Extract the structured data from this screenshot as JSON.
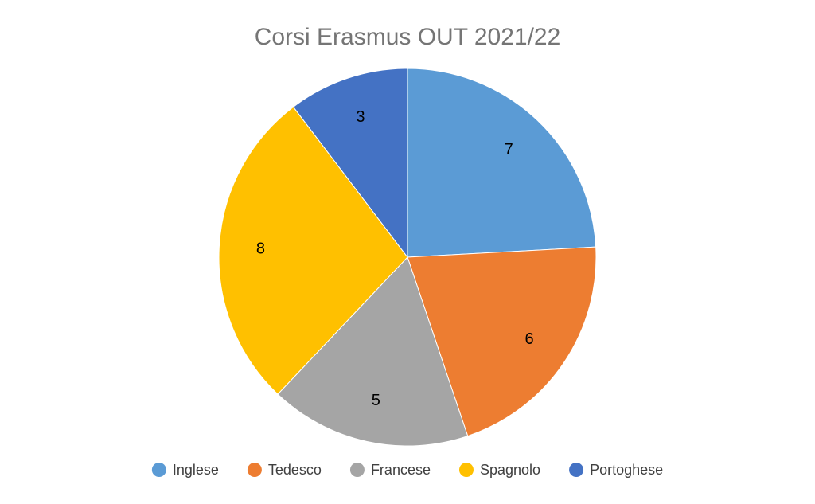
{
  "chart_data": {
    "type": "pie",
    "title": "Corsi Erasmus OUT 2021/22",
    "categories": [
      "Inglese",
      "Tedesco",
      "Francese",
      "Spagnolo",
      "Portoghese"
    ],
    "values": [
      7,
      6,
      5,
      8,
      3
    ],
    "colors": [
      "#5b9bd5",
      "#ed7d31",
      "#a5a5a5",
      "#ffc000",
      "#4472c4"
    ],
    "legend": "bottom"
  }
}
